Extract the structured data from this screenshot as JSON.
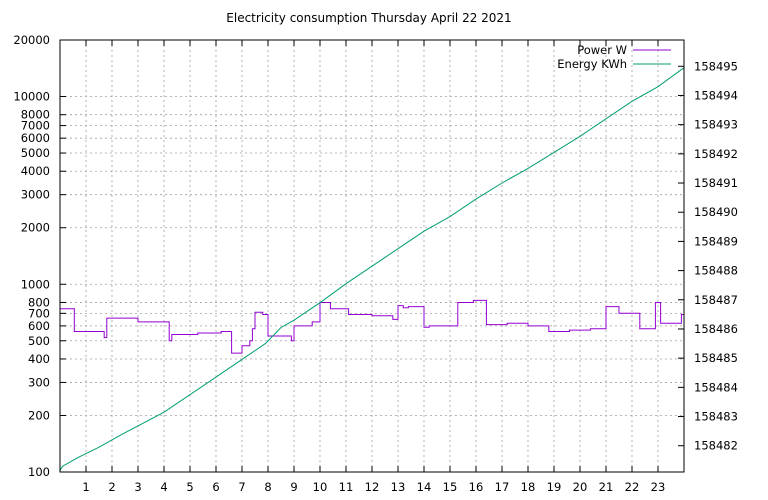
{
  "chart_data": {
    "type": "line",
    "title": "Electricity consumption Thursday April 22 2021",
    "xlabel": "",
    "ylabel": "",
    "y2label": "",
    "grid": true,
    "legend_position": "top-right",
    "x_range": [
      0,
      24
    ],
    "x_ticks": [
      1,
      2,
      3,
      4,
      5,
      6,
      7,
      8,
      9,
      10,
      11,
      12,
      13,
      14,
      15,
      16,
      17,
      18,
      19,
      20,
      21,
      22,
      23
    ],
    "y_scale": "log",
    "y_range": [
      100,
      20000
    ],
    "y_ticks": [
      100,
      200,
      300,
      400,
      500,
      600,
      700,
      800,
      1000,
      2000,
      3000,
      4000,
      5000,
      6000,
      7000,
      8000,
      10000,
      20000
    ],
    "y2_range": [
      158481.1,
      158495.9
    ],
    "y2_ticks": [
      158482,
      158483,
      158484,
      158485,
      158486,
      158487,
      158488,
      158489,
      158490,
      158491,
      158492,
      158493,
      158494,
      158495
    ],
    "colors": {
      "power": "#9400d3",
      "energy": "#009e73"
    },
    "series": [
      {
        "name": "Power W",
        "axis": "left",
        "step": true,
        "x": [
          0,
          0.5,
          0.55,
          1.6,
          1.7,
          1.8,
          2.4,
          3.0,
          4.2,
          4.3,
          5.2,
          5.3,
          6.2,
          6.6,
          7.0,
          7.3,
          7.4,
          7.5,
          7.8,
          8.0,
          8.2,
          8.9,
          9.0,
          9.7,
          10.0,
          10.4,
          11.1,
          12.0,
          12.8,
          13.0,
          13.2,
          13.4,
          14.0,
          14.2,
          15.3,
          15.9,
          16.4,
          17.2,
          18.0,
          18.8,
          19.6,
          20.4,
          21.0,
          21.5,
          22.3,
          22.9,
          23.1,
          23.3,
          23.9
        ],
        "values": [
          740,
          740,
          560,
          560,
          520,
          660,
          660,
          630,
          500,
          540,
          540,
          550,
          560,
          430,
          470,
          500,
          580,
          710,
          690,
          530,
          530,
          500,
          600,
          630,
          800,
          740,
          690,
          680,
          650,
          770,
          750,
          760,
          590,
          600,
          800,
          820,
          610,
          620,
          600,
          560,
          570,
          580,
          760,
          700,
          580,
          800,
          620,
          620,
          690
        ]
      },
      {
        "name": "Energy KWh",
        "axis": "right",
        "step": false,
        "x": [
          0,
          0.1,
          0.7,
          1.5,
          2.4,
          4.0,
          6.0,
          7.9,
          8.5,
          9.0,
          10.0,
          11.0,
          12.0,
          13.0,
          14.0,
          15.0,
          16.0,
          17.0,
          18.0,
          19.0,
          20.0,
          21.0,
          22.0,
          23.0,
          24.0
        ],
        "values": [
          158481.15,
          158481.3,
          158481.6,
          158481.95,
          158482.4,
          158483.15,
          158484.35,
          158485.5,
          158486.05,
          158486.3,
          158486.9,
          158487.55,
          158488.15,
          158488.75,
          158489.35,
          158489.85,
          158490.45,
          158491.0,
          158491.5,
          158492.05,
          158492.6,
          158493.2,
          158493.8,
          158494.3,
          158494.95
        ]
      }
    ]
  }
}
